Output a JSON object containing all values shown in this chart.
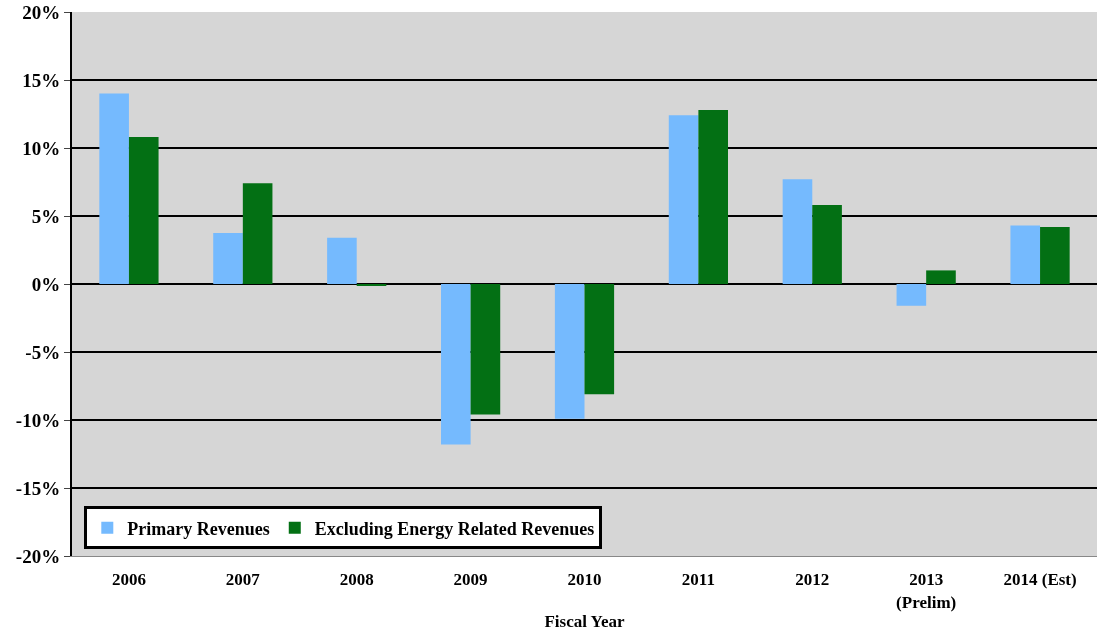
{
  "chart_data": {
    "type": "bar",
    "xlabel": "Fiscal Year",
    "categories": [
      "2006",
      "2007",
      "2008",
      "2009",
      "2010",
      "2011",
      "2012",
      "2013\n(Prelim)",
      "2014 (Est)"
    ],
    "series": [
      {
        "name": "Primary Revenues",
        "color": "#75bafe",
        "values": [
          14.0,
          3.75,
          3.4,
          -11.8,
          -9.9,
          12.4,
          7.7,
          -1.6,
          4.3
        ]
      },
      {
        "name": "Excluding Energy Related Revenues",
        "color": "#037014",
        "values": [
          10.8,
          7.4,
          -0.1,
          -9.6,
          -8.1,
          12.8,
          5.8,
          1.0,
          4.2
        ]
      }
    ],
    "ylim": [
      -20,
      20
    ],
    "yticks": [
      {
        "value": -20,
        "label": "-20%"
      },
      {
        "value": -15,
        "label": "-15%"
      },
      {
        "value": -10,
        "label": "-10%"
      },
      {
        "value": -5,
        "label": "-5%"
      },
      {
        "value": 0,
        "label": "0%"
      },
      {
        "value": 5,
        "label": "5%"
      },
      {
        "value": 10,
        "label": "10%"
      },
      {
        "value": 15,
        "label": "15%"
      },
      {
        "value": 20,
        "label": "20%"
      }
    ],
    "grid": "y",
    "legend": "bottom left"
  }
}
